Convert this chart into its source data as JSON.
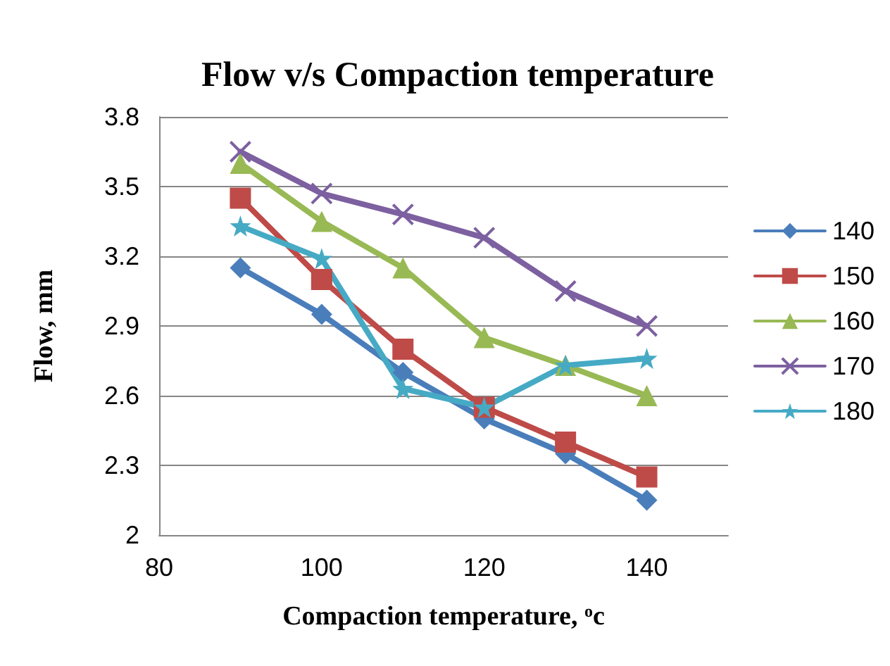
{
  "chart_data": {
    "type": "line",
    "title": "Flow v/s Compaction temperature",
    "xlabel": "Compaction temperature, $^{o}$c",
    "ylabel": "Flow, mm",
    "x": [
      90,
      100,
      110,
      120,
      130,
      140
    ],
    "series": [
      {
        "name": "140",
        "color": "#4a7ebb",
        "marker": "diamond",
        "values": [
          3.15,
          2.95,
          2.7,
          2.5,
          2.35,
          2.15
        ]
      },
      {
        "name": "150",
        "color": "#be4b48",
        "marker": "square",
        "values": [
          3.45,
          3.1,
          2.8,
          2.55,
          2.4,
          2.25
        ]
      },
      {
        "name": "160",
        "color": "#98b954",
        "marker": "triangle",
        "values": [
          3.6,
          3.35,
          3.15,
          2.85,
          2.73,
          2.6
        ]
      },
      {
        "name": "170",
        "color": "#7d60a0",
        "marker": "cross",
        "values": [
          3.65,
          3.47,
          3.38,
          3.28,
          3.05,
          2.9
        ]
      },
      {
        "name": "180",
        "color": "#46aac5",
        "marker": "star",
        "values": [
          3.33,
          3.19,
          2.63,
          2.55,
          2.73,
          2.76
        ]
      }
    ],
    "xlim": [
      80,
      150
    ],
    "xticks": [
      80,
      100,
      120,
      140
    ],
    "ylim": [
      2,
      3.8
    ],
    "yticks": [
      2,
      2.3,
      2.6,
      2.9,
      3.2,
      3.5,
      3.8
    ],
    "grid": "y",
    "legend": "right"
  }
}
